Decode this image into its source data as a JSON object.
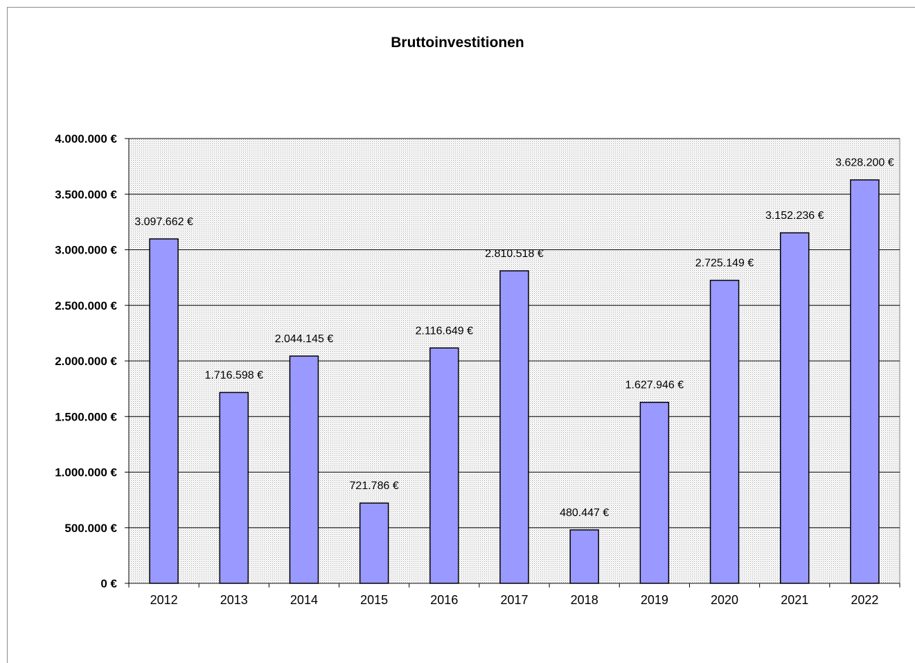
{
  "chart_data": {
    "type": "bar",
    "title": "Bruttoinvestitionen",
    "xlabel": "",
    "ylabel": "",
    "categories": [
      "2012",
      "2013",
      "2014",
      "2015",
      "2016",
      "2017",
      "2018",
      "2019",
      "2020",
      "2021",
      "2022"
    ],
    "values": [
      3097662,
      1716598,
      2044145,
      721786,
      2116649,
      2810518,
      480447,
      1627946,
      2725149,
      3152236,
      3628200
    ],
    "data_labels": [
      "3.097.662 €",
      "1.716.598 €",
      "2.044.145 €",
      "721.786 €",
      "2.116.649 €",
      "2.810.518 €",
      "480.447 €",
      "1.627.946 €",
      "2.725.149 €",
      "3.152.236 €",
      "3.628.200 €"
    ],
    "ylim": [
      0,
      4000000
    ],
    "yticks": [
      0,
      500000,
      1000000,
      1500000,
      2000000,
      2500000,
      3000000,
      3500000,
      4000000
    ],
    "ytick_labels": [
      "0 €",
      "500.000 €",
      "1.000.000 €",
      "1.500.000 €",
      "2.000.000 €",
      "2.500.000 €",
      "3.000.000 €",
      "3.500.000 €",
      "4.000.000 €"
    ],
    "grid": true,
    "legend": "none",
    "colors": {
      "bar_fill": "#9999ff",
      "bar_stroke": "#000000",
      "plot_background": "#e6e6e6",
      "gridline": "#000000"
    }
  }
}
